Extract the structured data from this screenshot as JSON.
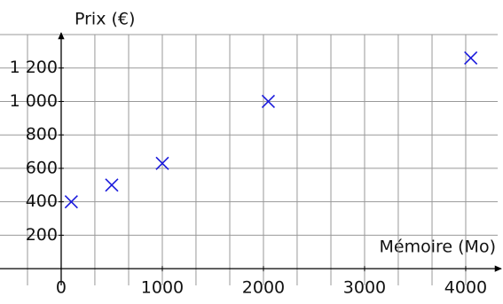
{
  "chart_data": {
    "type": "scatter",
    "ylabel": "Prix (€)",
    "xlabel": "Mémoire (Mo)",
    "x": [
      100,
      500,
      1000,
      2048,
      4050
    ],
    "series": [
      {
        "color": "#1a1adc",
        "values": [
          400,
          500,
          630,
          1000,
          1260
        ]
      }
    ],
    "xlim": [
      -605,
      4316
    ],
    "ylim": [
      -100,
      1400
    ],
    "xticks": [
      0,
      1000,
      2000,
      3000,
      4000
    ],
    "yticks": [
      200,
      400,
      600,
      800,
      {
        "value": 1000,
        "label": "1 000"
      },
      {
        "value": 1200,
        "label": "1 200"
      }
    ],
    "xgrid": [
      -333,
      333,
      667,
      1000,
      1333,
      1667,
      2000,
      2333,
      2667,
      3000,
      3333,
      3667,
      4000
    ],
    "ygrid": [
      200,
      400,
      600,
      800,
      1000,
      1200,
      1400
    ],
    "grid": true
  }
}
